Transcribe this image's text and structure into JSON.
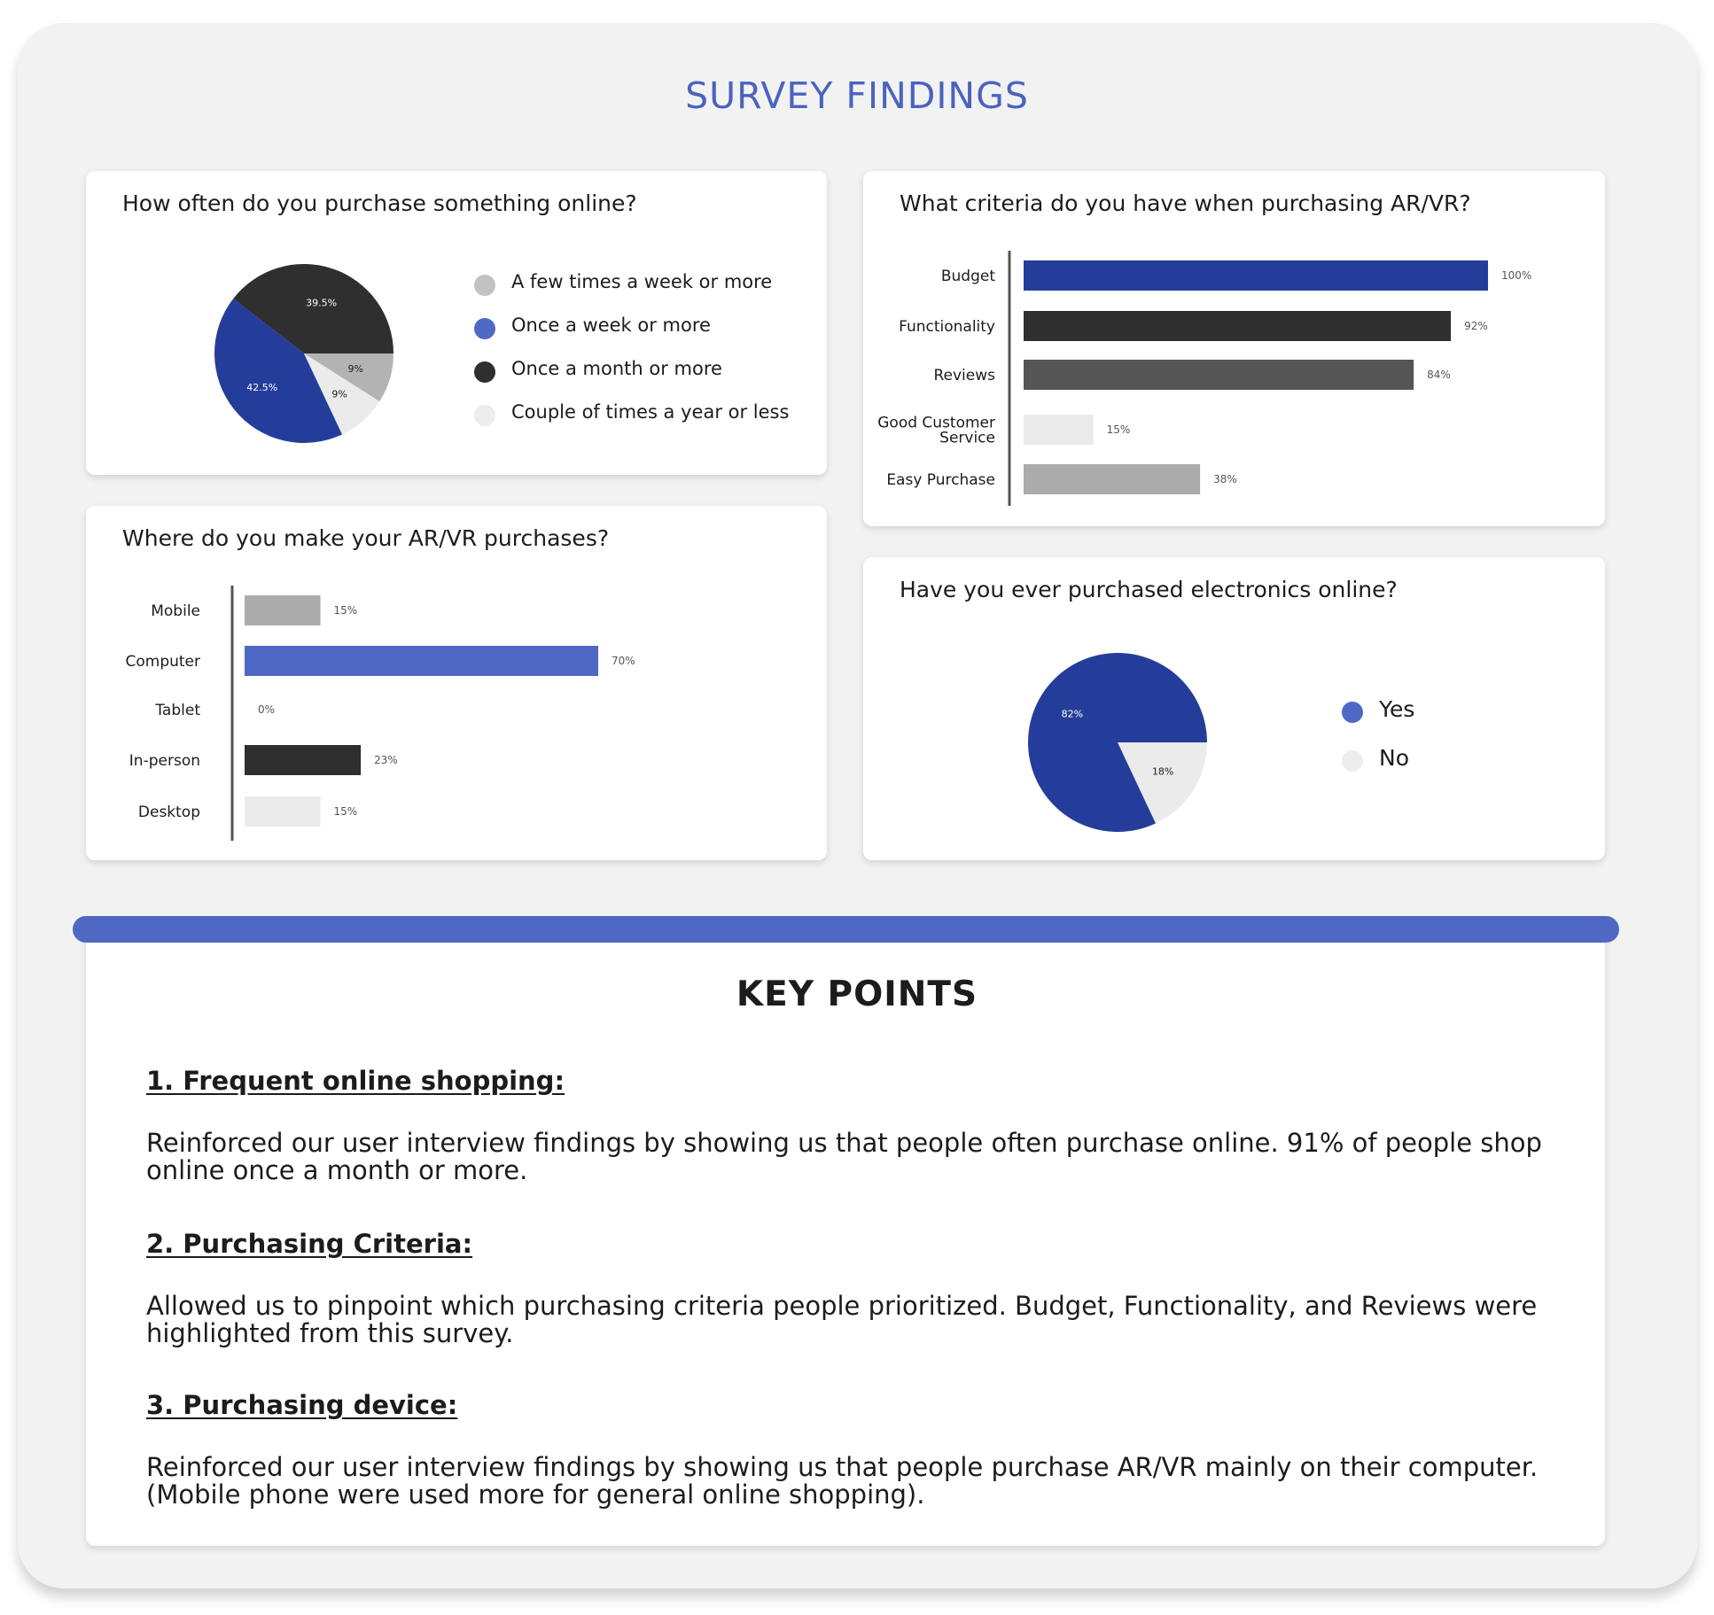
{
  "page": {
    "title": "SURVEY FINDINGS",
    "accent_color": "#4f68c4",
    "title_color": "#4a63be"
  },
  "chart_data": [
    {
      "id": "purchase_frequency",
      "type": "pie",
      "title": "How often do you purchase something online?",
      "slices": [
        {
          "label": "A few times a week or more",
          "value": 9,
          "display": "9%",
          "color": "#b3b3b3"
        },
        {
          "label": "Couple of times a year or less",
          "value": 9,
          "display": "9%",
          "color": "#ebebeb"
        },
        {
          "label": "Once a week or more",
          "value": 42.5,
          "display": "42.5%",
          "color": "#253d9a"
        },
        {
          "label": "Once a month or more",
          "value": 39.5,
          "display": "39.5%",
          "color": "#2f2f2f"
        }
      ],
      "legend": [
        {
          "label": "A few times a week or more",
          "color": "#c2c2c2"
        },
        {
          "label": "Once a week or more",
          "color": "#4f68c4"
        },
        {
          "label": "Once a month or more",
          "color": "#2f2f2f"
        },
        {
          "label": "Couple of times a year or less",
          "color": "#ededed"
        }
      ],
      "legend_position": "right"
    },
    {
      "id": "purchase_location",
      "type": "bar",
      "orientation": "horizontal",
      "title": "Where do you make your AR/VR purchases?",
      "categories": [
        "Mobile",
        "Computer",
        "Tablet",
        "In-person",
        "Desktop"
      ],
      "values": [
        15,
        70,
        0,
        23,
        15
      ],
      "value_labels": [
        "15%",
        "70%",
        "0%",
        "23%",
        "15%"
      ],
      "colors": [
        "#ababab",
        "#4f68c4",
        "#ababab",
        "#2f2f2f",
        "#ebebeb"
      ],
      "xlim": [
        0,
        100
      ]
    },
    {
      "id": "purchase_criteria",
      "type": "bar",
      "orientation": "horizontal",
      "title": "What criteria do you have when purchasing AR/VR?",
      "categories": [
        "Budget",
        "Functionality",
        "Reviews",
        "Good Customer Service",
        "Easy Purchase"
      ],
      "category_lines": [
        [
          "Budget"
        ],
        [
          "Functionality"
        ],
        [
          "Reviews"
        ],
        [
          "Good Customer",
          "Service"
        ],
        [
          "Easy Purchase"
        ]
      ],
      "values": [
        100,
        92,
        84,
        15,
        38
      ],
      "value_labels": [
        "100%",
        "92%",
        "84%",
        "15%",
        "38%"
      ],
      "colors": [
        "#253d9a",
        "#2f2f2f",
        "#555555",
        "#ebebeb",
        "#ababab"
      ],
      "xlim": [
        0,
        100
      ]
    },
    {
      "id": "electronics_online",
      "type": "pie",
      "title": "Have you ever purchased electronics online?",
      "slices": [
        {
          "label": "No",
          "value": 18,
          "display": "18%",
          "color": "#ebebeb"
        },
        {
          "label": "Yes",
          "value": 82,
          "display": "82%",
          "color": "#253d9a"
        }
      ],
      "legend": [
        {
          "label": "Yes",
          "color": "#4f68c4"
        },
        {
          "label": "No",
          "color": "#ededed"
        }
      ],
      "legend_position": "right"
    }
  ],
  "key_points": {
    "title": "KEY POINTS",
    "items": [
      {
        "heading": "1. Frequent online shopping:",
        "body": "Reinforced our user interview findings by showing us that people often purchase online. 91% of people shop online once a month or more."
      },
      {
        "heading": "2. Purchasing Criteria:",
        "body": "Allowed us to pinpoint which purchasing criteria people prioritized. Budget, Functionality, and Reviews were highlighted from this survey."
      },
      {
        "heading": "3. Purchasing device:",
        "body": "Reinforced our user interview findings by showing us that people purchase AR/VR mainly on their computer. (Mobile phone were used more for general online shopping)."
      }
    ]
  }
}
